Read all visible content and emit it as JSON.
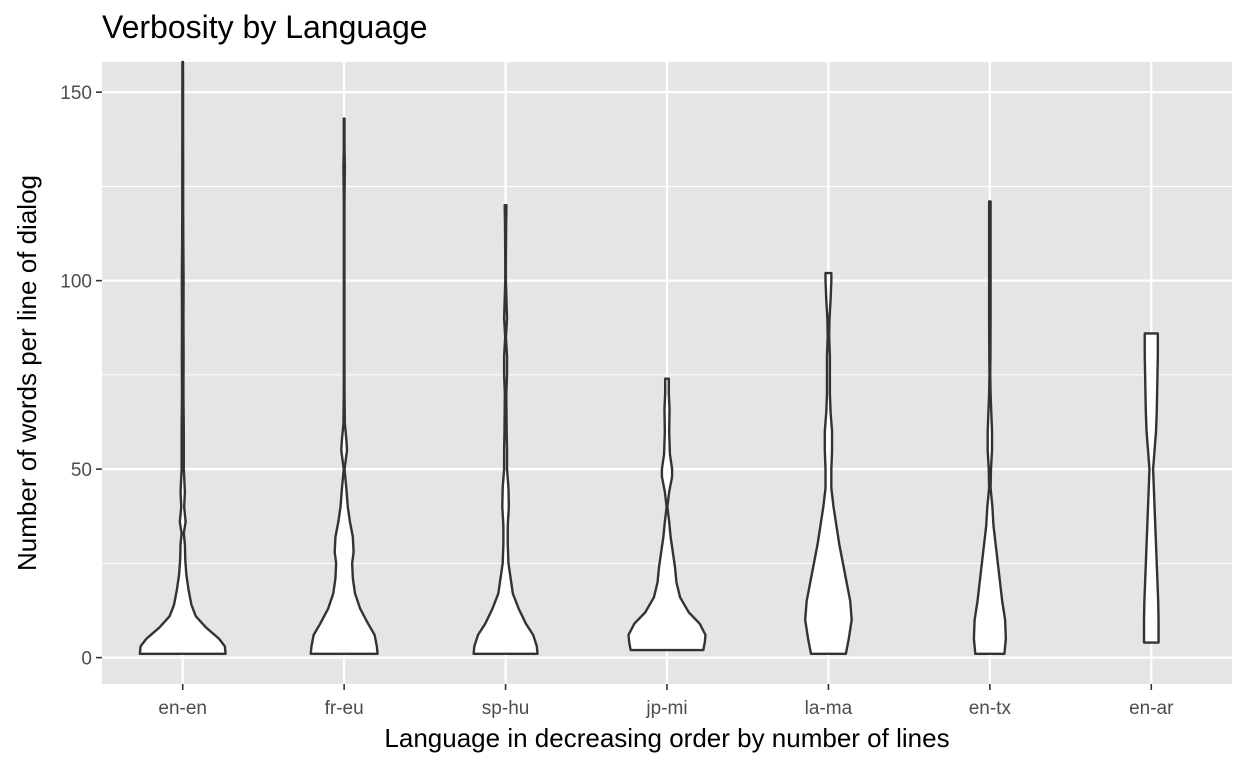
{
  "chart_data": {
    "type": "violin",
    "title": "Verbosity by Language",
    "xlabel": "Language in decreasing order by number of lines",
    "ylabel": "Number of words per line of dialog",
    "ylim": [
      -7,
      158
    ],
    "yticks": [
      0,
      50,
      100,
      150
    ],
    "ytick_labels": [
      "0",
      "50",
      "100",
      "150"
    ],
    "categories": [
      "en-en",
      "fr-eu",
      "sp-hu",
      "jp-mi",
      "la-ma",
      "en-tx",
      "en-ar"
    ],
    "grid": true,
    "panel_background": "#e5e5e5",
    "grid_color": "#ffffff",
    "violin_fill": "#ffffff",
    "violin_outline": "#333333",
    "violins": [
      {
        "category": "en-en",
        "min": 1,
        "max": 158,
        "profile": [
          [
            1,
            0.59
          ],
          [
            3,
            0.58
          ],
          [
            5,
            0.5
          ],
          [
            8,
            0.32
          ],
          [
            11,
            0.18
          ],
          [
            14,
            0.12
          ],
          [
            18,
            0.08
          ],
          [
            22,
            0.05
          ],
          [
            26,
            0.035
          ],
          [
            30,
            0.03
          ],
          [
            33,
            0.015
          ],
          [
            36,
            0.04
          ],
          [
            40,
            0.02
          ],
          [
            44,
            0.03
          ],
          [
            50,
            0.015
          ],
          [
            60,
            0.015
          ],
          [
            70,
            0.01
          ],
          [
            80,
            0.012
          ],
          [
            90,
            0.01
          ],
          [
            100,
            0.012
          ],
          [
            110,
            0.008
          ],
          [
            120,
            0.006
          ],
          [
            130,
            0.006
          ],
          [
            140,
            0.005
          ],
          [
            150,
            0.005
          ],
          [
            158,
            0.004
          ]
        ]
      },
      {
        "category": "fr-eu",
        "min": 1,
        "max": 143,
        "profile": [
          [
            1,
            0.46
          ],
          [
            3,
            0.45
          ],
          [
            6,
            0.42
          ],
          [
            9,
            0.33
          ],
          [
            13,
            0.22
          ],
          [
            17,
            0.15
          ],
          [
            21,
            0.12
          ],
          [
            25,
            0.11
          ],
          [
            28,
            0.13
          ],
          [
            32,
            0.12
          ],
          [
            36,
            0.08
          ],
          [
            40,
            0.05
          ],
          [
            45,
            0.03
          ],
          [
            50,
            0.005
          ],
          [
            55,
            0.04
          ],
          [
            58,
            0.03
          ],
          [
            62,
            0.01
          ],
          [
            70,
            0.005
          ],
          [
            80,
            0.004
          ],
          [
            100,
            0.004
          ],
          [
            120,
            0.004
          ],
          [
            130,
            0.01
          ],
          [
            135,
            0.005
          ],
          [
            143,
            0.005
          ]
        ]
      },
      {
        "category": "sp-hu",
        "min": 1,
        "max": 120,
        "profile": [
          [
            1,
            0.44
          ],
          [
            3,
            0.43
          ],
          [
            6,
            0.38
          ],
          [
            9,
            0.28
          ],
          [
            13,
            0.18
          ],
          [
            17,
            0.1
          ],
          [
            21,
            0.07
          ],
          [
            25,
            0.04
          ],
          [
            30,
            0.03
          ],
          [
            35,
            0.03
          ],
          [
            40,
            0.045
          ],
          [
            45,
            0.04
          ],
          [
            50,
            0.02
          ],
          [
            55,
            0.02
          ],
          [
            60,
            0.015
          ],
          [
            70,
            0.01
          ],
          [
            75,
            0.02
          ],
          [
            80,
            0.02
          ],
          [
            85,
            0.005
          ],
          [
            90,
            0.02
          ],
          [
            95,
            0.012
          ],
          [
            100,
            0.004
          ],
          [
            105,
            0.004
          ],
          [
            110,
            0.006
          ],
          [
            115,
            0.008
          ],
          [
            120,
            0.012
          ]
        ]
      },
      {
        "category": "jp-mi",
        "min": 2,
        "max": 74,
        "profile": [
          [
            2,
            0.5
          ],
          [
            4,
            0.52
          ],
          [
            6,
            0.53
          ],
          [
            9,
            0.45
          ],
          [
            12,
            0.3
          ],
          [
            16,
            0.18
          ],
          [
            20,
            0.13
          ],
          [
            24,
            0.11
          ],
          [
            28,
            0.08
          ],
          [
            32,
            0.05
          ],
          [
            36,
            0.03
          ],
          [
            40,
            0.005
          ],
          [
            44,
            0.03
          ],
          [
            48,
            0.07
          ],
          [
            50,
            0.07
          ],
          [
            54,
            0.04
          ],
          [
            60,
            0.03
          ],
          [
            66,
            0.035
          ],
          [
            70,
            0.025
          ],
          [
            74,
            0.025
          ]
        ]
      },
      {
        "category": "la-ma",
        "min": 1,
        "max": 102,
        "profile": [
          [
            1,
            0.24
          ],
          [
            5,
            0.28
          ],
          [
            10,
            0.32
          ],
          [
            15,
            0.3
          ],
          [
            20,
            0.25
          ],
          [
            25,
            0.2
          ],
          [
            30,
            0.15
          ],
          [
            35,
            0.11
          ],
          [
            40,
            0.07
          ],
          [
            45,
            0.04
          ],
          [
            50,
            0.04
          ],
          [
            55,
            0.05
          ],
          [
            60,
            0.05
          ],
          [
            65,
            0.03
          ],
          [
            70,
            0.02
          ],
          [
            75,
            0.02
          ],
          [
            80,
            0.02
          ],
          [
            85,
            0.01
          ],
          [
            90,
            0.015
          ],
          [
            95,
            0.03
          ],
          [
            100,
            0.04
          ],
          [
            102,
            0.04
          ]
        ]
      },
      {
        "category": "en-tx",
        "min": 1,
        "max": 121,
        "profile": [
          [
            1,
            0.2
          ],
          [
            5,
            0.22
          ],
          [
            10,
            0.21
          ],
          [
            15,
            0.17
          ],
          [
            20,
            0.14
          ],
          [
            25,
            0.11
          ],
          [
            30,
            0.08
          ],
          [
            35,
            0.05
          ],
          [
            40,
            0.035
          ],
          [
            45,
            0.01
          ],
          [
            50,
            0.015
          ],
          [
            55,
            0.03
          ],
          [
            60,
            0.03
          ],
          [
            65,
            0.02
          ],
          [
            70,
            0.01
          ],
          [
            75,
            0.005
          ],
          [
            80,
            0.008
          ],
          [
            90,
            0.01
          ],
          [
            100,
            0.01
          ],
          [
            110,
            0.01
          ],
          [
            121,
            0.01
          ]
        ]
      },
      {
        "category": "en-ar",
        "min": 4,
        "max": 86,
        "profile": [
          [
            4,
            0.1
          ],
          [
            10,
            0.1
          ],
          [
            15,
            0.095
          ],
          [
            20,
            0.085
          ],
          [
            25,
            0.075
          ],
          [
            30,
            0.065
          ],
          [
            35,
            0.055
          ],
          [
            40,
            0.045
          ],
          [
            45,
            0.035
          ],
          [
            50,
            0.025
          ],
          [
            55,
            0.045
          ],
          [
            60,
            0.065
          ],
          [
            65,
            0.075
          ],
          [
            70,
            0.08
          ],
          [
            75,
            0.085
          ],
          [
            80,
            0.09
          ],
          [
            86,
            0.09
          ]
        ]
      }
    ]
  }
}
